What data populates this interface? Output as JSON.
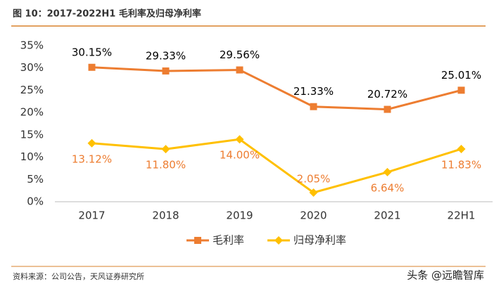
{
  "header": {
    "title": "图 10：2017-2022H1 毛利率及归母净利率"
  },
  "chart_data": {
    "type": "line",
    "categories": [
      "2017",
      "2018",
      "2019",
      "2020",
      "2021",
      "22H1"
    ],
    "series": [
      {
        "name": "毛利率",
        "color": "#ED7D31",
        "marker": "square",
        "label_color": "#000000",
        "values": [
          30.15,
          29.33,
          29.56,
          21.33,
          20.72,
          25.01
        ],
        "value_labels": [
          "30.15%",
          "29.33%",
          "29.56%",
          "21.33%",
          "20.72%",
          "25.01%"
        ]
      },
      {
        "name": "归母净利率",
        "color": "#FFC000",
        "marker": "diamond",
        "label_color": "#ED7D31",
        "values": [
          13.12,
          11.8,
          14.0,
          2.05,
          6.64,
          11.83
        ],
        "value_labels": [
          "13.12%",
          "11.80%",
          "14.00%",
          "2.05%",
          "6.64%",
          "11.83%"
        ]
      }
    ],
    "ylim": [
      0,
      35
    ],
    "yticks": [
      {
        "value": 0,
        "label": "0%"
      },
      {
        "value": 5,
        "label": "5%"
      },
      {
        "value": 10,
        "label": "10%"
      },
      {
        "value": 15,
        "label": "15%"
      },
      {
        "value": 20,
        "label": "20%"
      },
      {
        "value": 25,
        "label": "25%"
      },
      {
        "value": 30,
        "label": "30%"
      },
      {
        "value": 35,
        "label": "35%"
      }
    ],
    "grid": false,
    "legend": "bottom"
  },
  "footer": {
    "source": "资料来源：公司公告，天风证券研究所",
    "watermark": "头条 @远瞻智库"
  }
}
